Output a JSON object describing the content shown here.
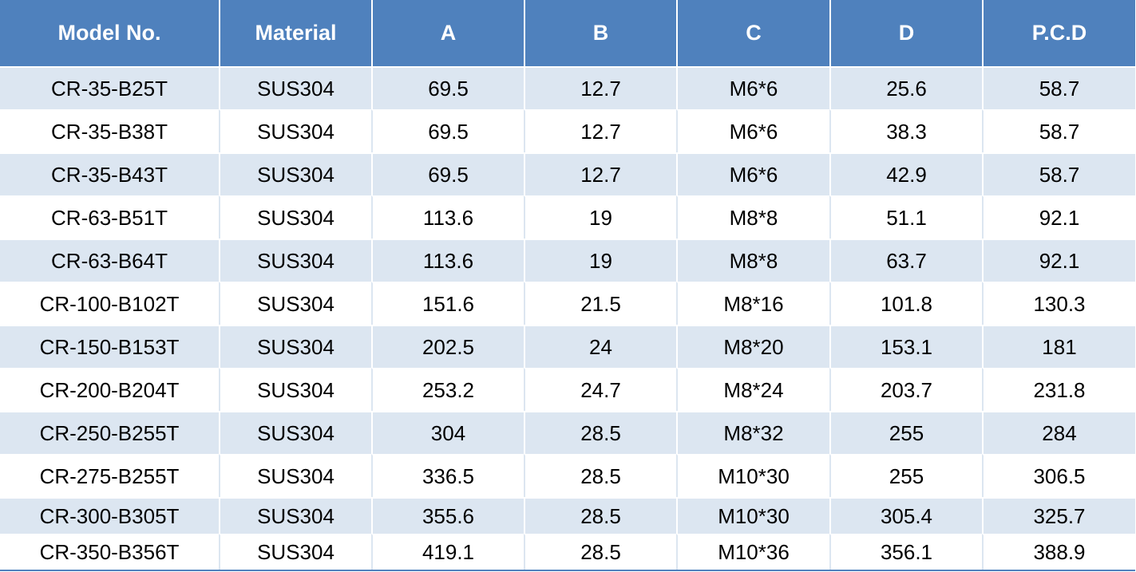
{
  "table": {
    "headers": [
      "Model No.",
      "Material",
      "A",
      "B",
      "C",
      "D",
      "P.C.D"
    ],
    "rows": [
      [
        "CR-35-B25T",
        "SUS304",
        "69.5",
        "12.7",
        "M6*6",
        "25.6",
        "58.7"
      ],
      [
        "CR-35-B38T",
        "SUS304",
        "69.5",
        "12.7",
        "M6*6",
        "38.3",
        "58.7"
      ],
      [
        "CR-35-B43T",
        "SUS304",
        "69.5",
        "12.7",
        "M6*6",
        "42.9",
        "58.7"
      ],
      [
        "CR-63-B51T",
        "SUS304",
        "113.6",
        "19",
        "M8*8",
        "51.1",
        "92.1"
      ],
      [
        "CR-63-B64T",
        "SUS304",
        "113.6",
        "19",
        "M8*8",
        "63.7",
        "92.1"
      ],
      [
        "CR-100-B102T",
        "SUS304",
        "151.6",
        "21.5",
        "M8*16",
        "101.8",
        "130.3"
      ],
      [
        "CR-150-B153T",
        "SUS304",
        "202.5",
        "24",
        "M8*20",
        "153.1",
        "181"
      ],
      [
        "CR-200-B204T",
        "SUS304",
        "253.2",
        "24.7",
        "M8*24",
        "203.7",
        "231.8"
      ],
      [
        "CR-250-B255T",
        "SUS304",
        "304",
        "28.5",
        "M8*32",
        "255",
        "284"
      ],
      [
        "CR-275-B255T",
        "SUS304",
        "336.5",
        "28.5",
        "M10*30",
        "255",
        "306.5"
      ],
      [
        "CR-300-B305T",
        "SUS304",
        "355.6",
        "28.5",
        "M10*30",
        "305.4",
        "325.7"
      ],
      [
        "CR-350-B356T",
        "SUS304",
        "419.1",
        "28.5",
        "M10*36",
        "356.1",
        "388.9"
      ]
    ]
  },
  "colors": {
    "header_bg": "#4f81bd",
    "header_text": "#ffffff",
    "band_bg": "#dce6f1",
    "plain_bg": "#ffffff"
  }
}
